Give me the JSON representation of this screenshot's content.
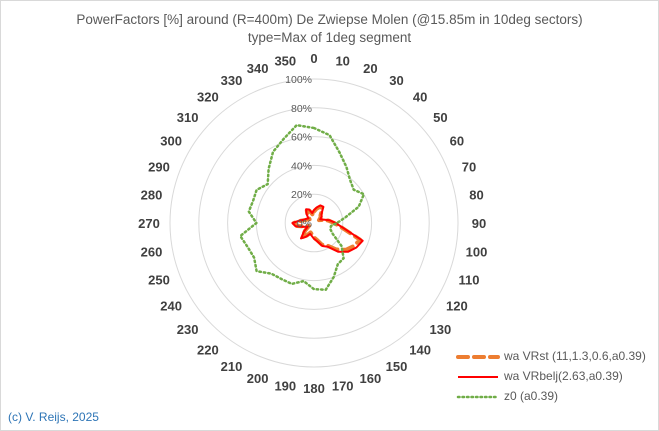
{
  "title_line1": "PowerFactors [%] around (R=400m) De Zwiepse Molen (@15.85m in 10deg sectors)",
  "title_line2": "type=Max of 1deg segment",
  "copyright": "(c) V. Reijs, 2025",
  "chart_data": {
    "type": "radar",
    "title": "PowerFactors [%] around (R=400m) De Zwiepse Molen (@15.85m in 10deg sectors) type=Max of 1deg segment",
    "angle_labels": [
      "0",
      "10",
      "20",
      "30",
      "40",
      "50",
      "60",
      "70",
      "80",
      "90",
      "100",
      "110",
      "120",
      "130",
      "140",
      "150",
      "160",
      "170",
      "180",
      "190",
      "200",
      "210",
      "220",
      "230",
      "240",
      "250",
      "260",
      "270",
      "280",
      "290",
      "300",
      "310",
      "320",
      "330",
      "340",
      "350"
    ],
    "radial_ticks": [
      "0%",
      "20%",
      "40%",
      "60%",
      "80%",
      "100%"
    ],
    "rlim": [
      0,
      100
    ],
    "series": [
      {
        "name": "wa VRst (11,1.3,0.6,a0.39)",
        "style": "dashed",
        "color": "#ed7d31",
        "values": [
          8,
          10,
          12,
          12,
          7,
          6,
          4,
          6,
          10,
          14,
          20,
          34,
          32,
          29,
          24,
          18,
          16,
          12,
          10,
          8,
          7,
          10,
          13,
          8,
          4,
          7,
          12,
          14,
          9,
          6,
          5,
          4,
          7,
          10,
          9,
          6
        ]
      },
      {
        "name": "wa VRbelj(2.63,a0.39)",
        "style": "solid",
        "color": "#ff0000",
        "values": [
          9,
          11,
          13,
          13,
          8,
          7,
          5,
          7,
          11,
          15,
          21,
          36,
          34,
          31,
          26,
          19,
          17,
          13,
          11,
          9,
          8,
          11,
          14,
          9,
          5,
          8,
          13,
          15,
          10,
          7,
          6,
          5,
          8,
          11,
          10,
          7
        ]
      },
      {
        "name": "z0 (a0.39)",
        "style": "dotted",
        "color": "#70ad47",
        "values": [
          66,
          62,
          52,
          45,
          39,
          36,
          40,
          33,
          22,
          16,
          12,
          12,
          15,
          25,
          32,
          33,
          40,
          47,
          46,
          41,
          45,
          45,
          46,
          52,
          48,
          49,
          52,
          40,
          46,
          45,
          46,
          42,
          49,
          57,
          62,
          69
        ]
      }
    ],
    "legend_position": "bottom-right"
  }
}
